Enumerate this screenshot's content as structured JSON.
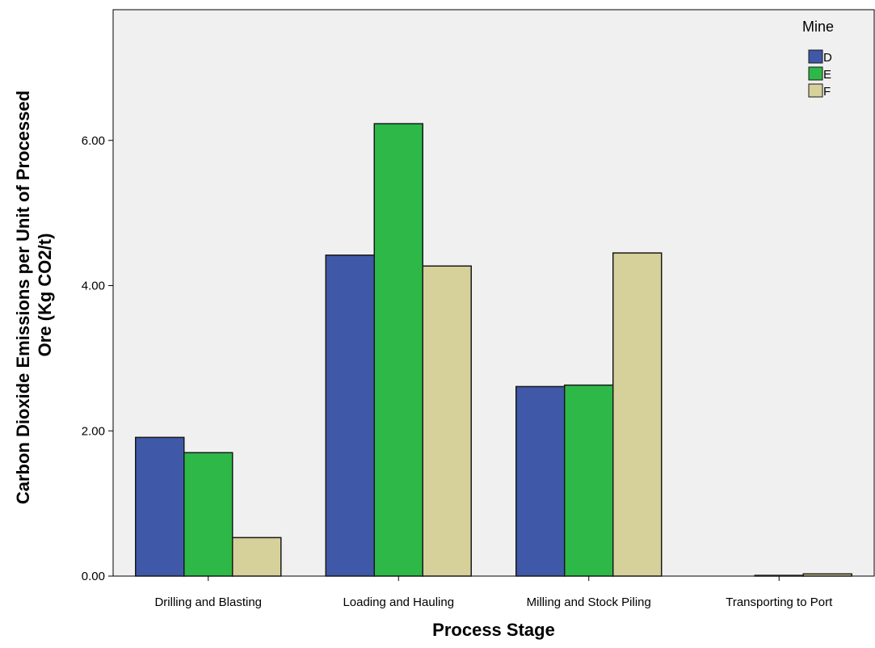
{
  "chart_data": {
    "type": "bar",
    "xlabel": "Process Stage",
    "ylabel_lines": [
      "Carbon Dioxide Emissions per Unit of Processed",
      "Ore (Kg CO2/t)"
    ],
    "categories": [
      "Drilling and Blasting",
      "Loading and Hauling",
      "Milling and Stock Piling",
      "Transporting to Port"
    ],
    "series": [
      {
        "name": "D",
        "color": "#3f58a8",
        "values": [
          1.91,
          4.42,
          2.61,
          0.0
        ]
      },
      {
        "name": "E",
        "color": "#2db848",
        "values": [
          1.7,
          6.23,
          2.63,
          0.01
        ]
      },
      {
        "name": "F",
        "color": "#d6d09a",
        "values": [
          0.53,
          4.27,
          4.45,
          0.03
        ]
      }
    ],
    "ylim": [
      0,
      7.8
    ],
    "yticks": [
      0,
      2,
      4,
      6
    ],
    "ytick_labels": [
      "0.00",
      "2.00",
      "4.00",
      "6.00"
    ],
    "legend": {
      "title": "Mine",
      "position": "top-right"
    },
    "grid": false,
    "colors": {
      "plot_background": "#f0f0f0",
      "axis": "#000000",
      "bar_edge": "#1a1a1a"
    }
  }
}
